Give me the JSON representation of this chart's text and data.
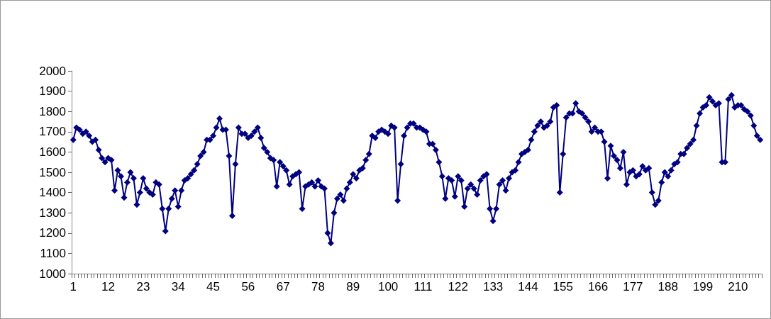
{
  "chart_data": {
    "type": "line",
    "marker": "diamond",
    "color": "#000080",
    "grid": false,
    "ylim": [
      1000,
      2000
    ],
    "yticks": [
      1000,
      1100,
      1200,
      1300,
      1400,
      1500,
      1600,
      1700,
      1800,
      1900,
      2000
    ],
    "categories": [
      "1",
      null,
      null,
      null,
      null,
      null,
      null,
      null,
      null,
      null,
      null,
      "12",
      null,
      null,
      null,
      null,
      null,
      null,
      null,
      null,
      null,
      null,
      "23",
      null,
      null,
      null,
      null,
      null,
      null,
      null,
      null,
      null,
      null,
      "34",
      null,
      null,
      null,
      null,
      null,
      null,
      null,
      null,
      null,
      null,
      "45",
      null,
      null,
      null,
      null,
      null,
      null,
      null,
      null,
      null,
      null,
      "56",
      null,
      null,
      null,
      null,
      null,
      null,
      null,
      null,
      null,
      null,
      "67",
      null,
      null,
      null,
      null,
      null,
      null,
      null,
      null,
      null,
      null,
      "78",
      null,
      null,
      null,
      null,
      null,
      null,
      null,
      null,
      null,
      null,
      "89",
      null,
      null,
      null,
      null,
      null,
      null,
      null,
      null,
      null,
      null,
      "100",
      null,
      null,
      null,
      null,
      null,
      null,
      null,
      null,
      null,
      null,
      "111",
      null,
      null,
      null,
      null,
      null,
      null,
      null,
      null,
      null,
      null,
      "122",
      null,
      null,
      null,
      null,
      null,
      null,
      null,
      null,
      null,
      null,
      "133",
      null,
      null,
      null,
      null,
      null,
      null,
      null,
      null,
      null,
      null,
      "144",
      null,
      null,
      null,
      null,
      null,
      null,
      null,
      null,
      null,
      null,
      "155",
      null,
      null,
      null,
      null,
      null,
      null,
      null,
      null,
      null,
      null,
      "166",
      null,
      null,
      null,
      null,
      null,
      null,
      null,
      null,
      null,
      null,
      "177",
      null,
      null,
      null,
      null,
      null,
      null,
      null,
      null,
      null,
      null,
      "188",
      null,
      null,
      null,
      null,
      null,
      null,
      null,
      null,
      null,
      null,
      "199",
      null,
      null,
      null,
      null,
      null,
      null,
      null,
      null,
      null,
      null,
      "210",
      null,
      null,
      null,
      null,
      null,
      null,
      null
    ],
    "values": [
      1660,
      1720,
      1710,
      1690,
      1700,
      1680,
      1650,
      1660,
      1610,
      1570,
      1550,
      1570,
      1560,
      1410,
      1510,
      1480,
      1375,
      1450,
      1500,
      1470,
      1340,
      1400,
      1470,
      1420,
      1400,
      1390,
      1450,
      1440,
      1320,
      1210,
      1320,
      1370,
      1410,
      1330,
      1410,
      1460,
      1470,
      1490,
      1510,
      1540,
      1580,
      1600,
      1660,
      1660,
      1680,
      1720,
      1765,
      1710,
      1710,
      1580,
      1285,
      1540,
      1720,
      1690,
      1690,
      1670,
      1680,
      1700,
      1720,
      1670,
      1620,
      1600,
      1570,
      1560,
      1430,
      1550,
      1530,
      1510,
      1440,
      1480,
      1490,
      1500,
      1320,
      1430,
      1440,
      1450,
      1430,
      1460,
      1430,
      1420,
      1200,
      1150,
      1300,
      1370,
      1390,
      1360,
      1420,
      1450,
      1490,
      1470,
      1510,
      1520,
      1560,
      1590,
      1680,
      1670,
      1700,
      1710,
      1700,
      1690,
      1730,
      1720,
      1360,
      1540,
      1680,
      1720,
      1740,
      1740,
      1720,
      1720,
      1710,
      1700,
      1640,
      1640,
      1610,
      1550,
      1480,
      1370,
      1470,
      1460,
      1380,
      1480,
      1460,
      1330,
      1420,
      1440,
      1420,
      1390,
      1460,
      1480,
      1490,
      1320,
      1260,
      1320,
      1440,
      1460,
      1410,
      1470,
      1500,
      1510,
      1550,
      1590,
      1600,
      1610,
      1660,
      1700,
      1730,
      1750,
      1720,
      1730,
      1750,
      1820,
      1830,
      1400,
      1590,
      1770,
      1790,
      1790,
      1840,
      1800,
      1790,
      1770,
      1750,
      1700,
      1720,
      1700,
      1700,
      1650,
      1470,
      1630,
      1580,
      1560,
      1520,
      1600,
      1440,
      1500,
      1510,
      1480,
      1490,
      1530,
      1510,
      1520,
      1400,
      1340,
      1360,
      1450,
      1500,
      1480,
      1510,
      1540,
      1550,
      1590,
      1590,
      1620,
      1640,
      1660,
      1730,
      1790,
      1820,
      1830,
      1870,
      1850,
      1830,
      1840,
      1550,
      1550,
      1860,
      1880,
      1820,
      1830,
      1830,
      1810,
      1800,
      1780,
      1730,
      1680,
      1660
    ]
  }
}
